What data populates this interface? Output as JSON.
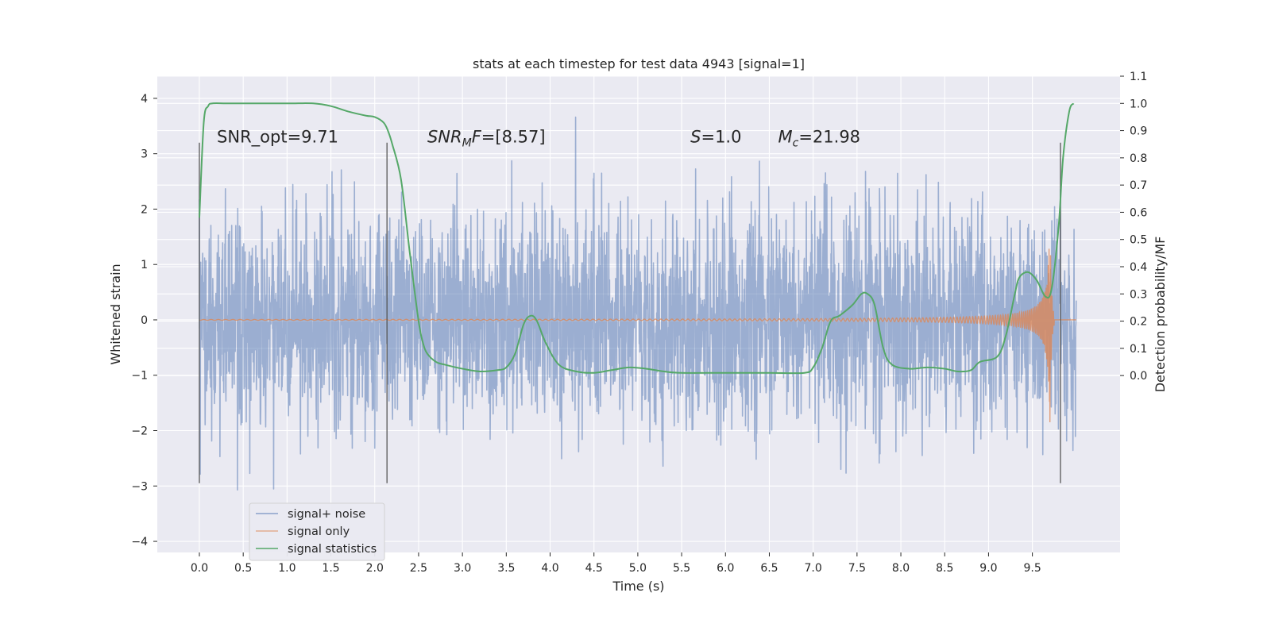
{
  "chart_data": {
    "type": "line",
    "title": "stats at each timestep for test data 4943 [signal=1]",
    "xlabel": "Time (s)",
    "ylabel": "Whitened strain",
    "y2label": "Detection probability/MF",
    "xlim": [
      -0.48,
      10.5
    ],
    "ylim": [
      -4.2,
      4.4
    ],
    "y2lim": [
      -0.65,
      1.1
    ],
    "x_ticks": [
      "0.0",
      "0.5",
      "1.0",
      "1.5",
      "2.0",
      "2.5",
      "3.0",
      "3.5",
      "4.0",
      "4.5",
      "5.0",
      "5.5",
      "6.0",
      "6.5",
      "7.0",
      "7.5",
      "8.0",
      "8.5",
      "9.0",
      "9.5"
    ],
    "y_ticks": [
      "−4",
      "−3",
      "−2",
      "−1",
      "0",
      "1",
      "2",
      "3",
      "4"
    ],
    "y2_ticks": [
      "0.0",
      "0.1",
      "0.2",
      "0.3",
      "0.4",
      "0.5",
      "0.6",
      "0.7",
      "0.8",
      "0.9",
      "1.0",
      "1.1"
    ],
    "grid": true,
    "legend_position": "lower-left",
    "colors": {
      "noise": "#4c72b0",
      "signal": "#dd8452",
      "stat": "#55a868",
      "vline": "#555555",
      "plot_bg": "#eaeaf2"
    },
    "annotations": [
      {
        "x": 0.2,
        "y": 3.2,
        "text": "SNR_opt=9.71"
      },
      {
        "x": 2.6,
        "y": 3.2,
        "text": "SNR_MF=[8.57]"
      },
      {
        "x": 5.6,
        "y": 3.2,
        "text": "S=1.0"
      },
      {
        "x": 6.6,
        "y": 3.2,
        "text": "M_c=21.98"
      }
    ],
    "vlines": [
      {
        "x": 0.0,
        "ymin": -2.95,
        "ymax": 3.2
      },
      {
        "x": 2.14,
        "ymin": -2.95,
        "ymax": 3.2
      },
      {
        "x": 9.82,
        "ymin": -2.95,
        "ymax": 3.2
      }
    ],
    "series": [
      {
        "name": "signal+ noise",
        "kind": "dense-noise",
        "x_range": [
          0.0,
          10.0
        ],
        "amplitude_std": 1.0
      },
      {
        "name": "signal only",
        "kind": "chirp",
        "x_range": [
          0.0,
          10.0
        ],
        "merger_time": 9.7,
        "peak_amplitude": 1.85
      },
      {
        "name": "signal statistics",
        "axis": "right",
        "x": [
          0.0,
          0.05,
          0.1,
          0.15,
          0.3,
          0.5,
          1.0,
          1.3,
          1.5,
          1.7,
          1.9,
          2.0,
          2.1,
          2.15,
          2.2,
          2.3,
          2.4,
          2.5,
          2.55,
          2.6,
          2.7,
          2.8,
          3.0,
          3.2,
          3.4,
          3.5,
          3.6,
          3.7,
          3.78,
          3.85,
          3.95,
          4.1,
          4.3,
          4.5,
          4.7,
          4.9,
          5.1,
          5.3,
          5.5,
          6.0,
          6.5,
          6.9,
          7.0,
          7.1,
          7.2,
          7.3,
          7.45,
          7.55,
          7.62,
          7.7,
          7.8,
          7.9,
          8.1,
          8.3,
          8.5,
          8.65,
          8.8,
          8.9,
          9.1,
          9.2,
          9.3,
          9.35,
          9.45,
          9.55,
          9.65,
          9.72,
          9.8,
          9.85,
          9.92,
          9.97
        ],
        "y": [
          0.58,
          0.93,
          0.99,
          1.0,
          1.0,
          1.0,
          1.0,
          1.0,
          0.99,
          0.97,
          0.955,
          0.95,
          0.93,
          0.9,
          0.85,
          0.72,
          0.45,
          0.2,
          0.12,
          0.08,
          0.05,
          0.04,
          0.025,
          0.015,
          0.02,
          0.03,
          0.08,
          0.19,
          0.22,
          0.2,
          0.12,
          0.04,
          0.015,
          0.01,
          0.02,
          0.03,
          0.025,
          0.015,
          0.01,
          0.01,
          0.01,
          0.01,
          0.03,
          0.1,
          0.2,
          0.22,
          0.26,
          0.3,
          0.3,
          0.26,
          0.1,
          0.04,
          0.025,
          0.03,
          0.025,
          0.015,
          0.02,
          0.05,
          0.07,
          0.15,
          0.3,
          0.36,
          0.38,
          0.35,
          0.29,
          0.32,
          0.55,
          0.8,
          0.97,
          1.0
        ]
      }
    ]
  }
}
